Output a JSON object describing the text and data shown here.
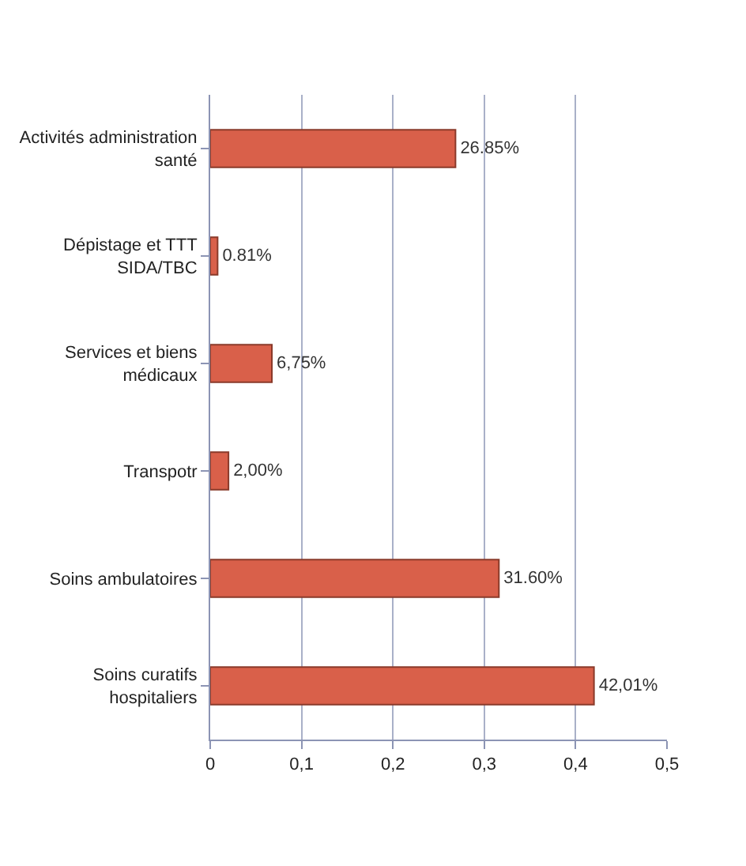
{
  "chart_data": {
    "type": "bar",
    "orientation": "horizontal",
    "categories": [
      "Activités administration santé",
      "Dépistage et TTT SIDA/TBC",
      "Services et biens médicaux",
      "Transpotr",
      "Soins ambulatoires",
      "Soins curatifs hospitaliers"
    ],
    "values": [
      0.2685,
      0.0081,
      0.0675,
      0.02,
      0.316,
      0.4201
    ],
    "value_labels": [
      "26.85%",
      "0.81%",
      "6,75%",
      "2,00%",
      "31.60%",
      "42,01%"
    ],
    "color": "#d9604a",
    "xlim": [
      0,
      0.5
    ],
    "xticks": [
      0,
      {
        "value": 0.1,
        "label": "0,1"
      },
      {
        "value": 0.2,
        "label": "0,2"
      },
      {
        "value": 0.3,
        "label": "0,3"
      },
      {
        "value": 0.4,
        "label": "0,4"
      },
      {
        "value": 0.5,
        "label": "0,5"
      }
    ],
    "grid": "x",
    "legend": false
  }
}
